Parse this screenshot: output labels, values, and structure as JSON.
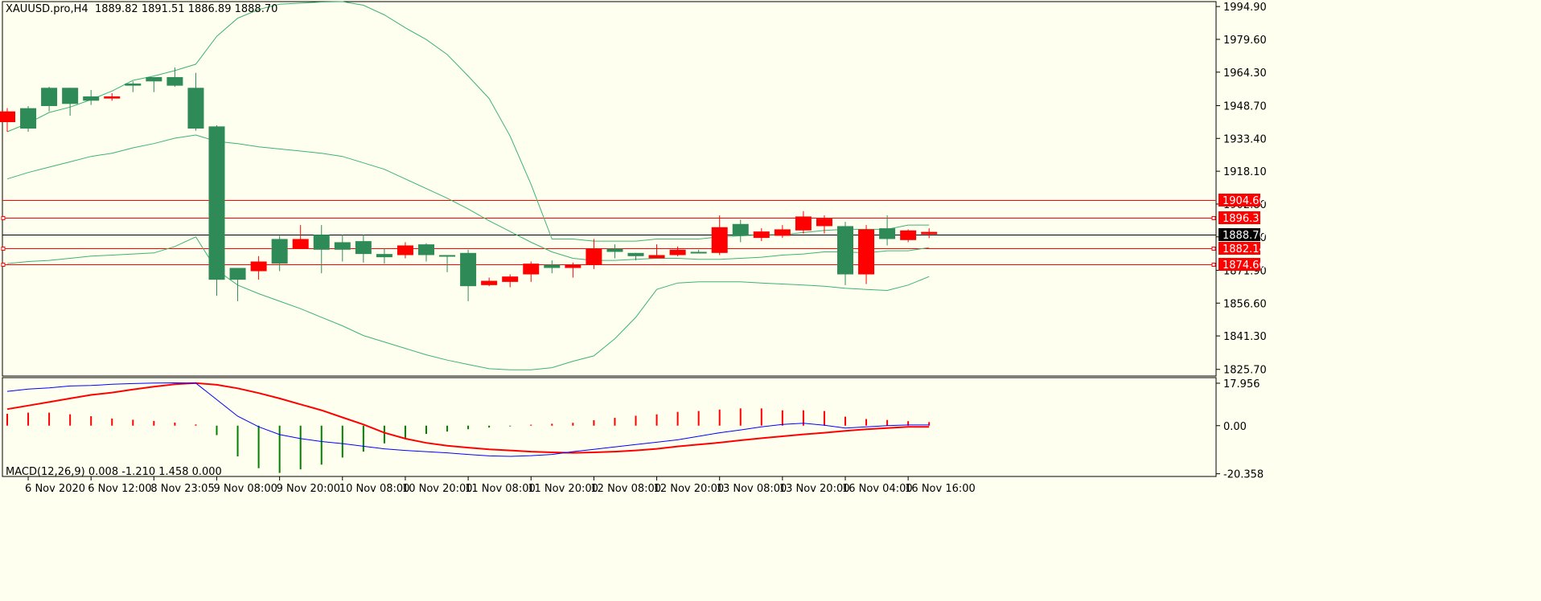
{
  "header": {
    "symbol_timeframe": "XAUUSD.pro,H4",
    "ohlc": "1889.82 1891.51 1886.89 1888.70"
  },
  "macd_header": {
    "label": "MACD(12,26,9)",
    "values": "0.008 -1.210 1.458 0.000"
  },
  "price_axis": {
    "ticks": [
      "1994.90",
      "1979.60",
      "1964.30",
      "1948.70",
      "1933.40",
      "1918.10",
      "1902.80",
      "1887.50",
      "1871.90",
      "1856.60",
      "1841.30",
      "1825.70"
    ],
    "tick_values": [
      1994.9,
      1979.6,
      1964.3,
      1948.7,
      1933.4,
      1918.1,
      1902.8,
      1887.5,
      1871.9,
      1856.6,
      1841.3,
      1825.7
    ],
    "range": [
      1822.6,
      1997.2
    ]
  },
  "macd_axis": {
    "ticks": [
      "17.956",
      "0.00",
      "-20.358"
    ],
    "tick_values": [
      17.956,
      0,
      -20.358
    ]
  },
  "time_axis": {
    "labels": [
      "6 Nov 2020",
      "6 Nov 12:00",
      "8 Nov 23:05",
      "9 Nov 08:00",
      "9 Nov 20:00",
      "10 Nov 08:00",
      "10 Nov 20:00",
      "11 Nov 08:00",
      "11 Nov 20:00",
      "12 Nov 08:00",
      "12 Nov 20:00",
      "13 Nov 08:00",
      "13 Nov 20:00",
      "16 Nov 04:00",
      "16 Nov 16:00"
    ],
    "label_bar_index": [
      1,
      4,
      7,
      10,
      13,
      16,
      19,
      22,
      25,
      28,
      31,
      34,
      37,
      40,
      43
    ]
  },
  "levels": [
    {
      "label": "1904.60",
      "value": 1904.6,
      "color": "#ff0000"
    },
    {
      "label": "1896.31",
      "value": 1896.31,
      "color": "#ff0000"
    },
    {
      "label": "1888.70",
      "value": 1888.7,
      "color": "#000000"
    },
    {
      "label": "1882.14",
      "value": 1882.14,
      "color": "#ff0000"
    },
    {
      "label": "1874.66",
      "value": 1874.66,
      "color": "#ff0000"
    }
  ],
  "colors": {
    "background": "#fffff0",
    "bull": "#2e8b57",
    "bear": "#ff0000",
    "bands": "#3cb371",
    "macd_line": "#0000ff",
    "signal_line": "#ff0000",
    "hist_pos": "#ff0000",
    "hist_neg": "#008000"
  },
  "chart_data": {
    "type": "candlestick",
    "symbol": "XAUUSD.pro",
    "timeframe": "H4",
    "ylim": [
      1822.6,
      1997.2
    ],
    "candles": [
      {
        "o": 1946.0,
        "h": 1947.5,
        "l": 1936.5,
        "c": 1941.0
      },
      {
        "o": 1938.0,
        "h": 1948.5,
        "l": 1936.5,
        "c": 1947.5
      },
      {
        "o": 1948.5,
        "h": 1957.5,
        "l": 1946.0,
        "c": 1957.0
      },
      {
        "o": 1949.5,
        "h": 1957.0,
        "l": 1944.0,
        "c": 1957.0
      },
      {
        "o": 1951.0,
        "h": 1956.0,
        "l": 1949.0,
        "c": 1953.0
      },
      {
        "o": 1953.0,
        "h": 1954.5,
        "l": 1951.0,
        "c": 1952.0
      },
      {
        "o": 1958.0,
        "h": 1960.0,
        "l": 1955.0,
        "c": 1959.0
      },
      {
        "o": 1960.0,
        "h": 1961.0,
        "l": 1955.0,
        "c": 1962.0
      },
      {
        "o": 1958.0,
        "h": 1966.5,
        "l": 1957.5,
        "c": 1962.0
      },
      {
        "o": 1938.0,
        "h": 1964.0,
        "l": 1937.0,
        "c": 1957.0
      },
      {
        "o": 1867.5,
        "h": 1939.5,
        "l": 1860.0,
        "c": 1939.0
      },
      {
        "o": 1867.5,
        "h": 1873.0,
        "l": 1857.5,
        "c": 1873.0
      },
      {
        "o": 1876.0,
        "h": 1878.5,
        "l": 1867.5,
        "c": 1871.5
      },
      {
        "o": 1875.0,
        "h": 1888.0,
        "l": 1871.5,
        "c": 1886.5
      },
      {
        "o": 1886.5,
        "h": 1893.0,
        "l": 1882.0,
        "c": 1882.0
      },
      {
        "o": 1881.5,
        "h": 1893.0,
        "l": 1870.5,
        "c": 1888.5
      },
      {
        "o": 1881.5,
        "h": 1888.5,
        "l": 1876.0,
        "c": 1885.0
      },
      {
        "o": 1879.5,
        "h": 1888.5,
        "l": 1875.5,
        "c": 1885.5
      },
      {
        "o": 1878.0,
        "h": 1882.0,
        "l": 1875.0,
        "c": 1879.5
      },
      {
        "o": 1883.5,
        "h": 1885.0,
        "l": 1877.5,
        "c": 1879.0
      },
      {
        "o": 1879.0,
        "h": 1884.5,
        "l": 1876.0,
        "c": 1884.0
      },
      {
        "o": 1878.5,
        "h": 1879.0,
        "l": 1871.0,
        "c": 1879.0
      },
      {
        "o": 1864.5,
        "h": 1881.5,
        "l": 1857.5,
        "c": 1880.0
      },
      {
        "o": 1867.0,
        "h": 1868.5,
        "l": 1864.5,
        "c": 1865.0
      },
      {
        "o": 1869.0,
        "h": 1870.0,
        "l": 1864.0,
        "c": 1866.5
      },
      {
        "o": 1875.0,
        "h": 1876.0,
        "l": 1866.5,
        "c": 1870.0
      },
      {
        "o": 1873.0,
        "h": 1876.5,
        "l": 1870.5,
        "c": 1874.5
      },
      {
        "o": 1874.5,
        "h": 1875.5,
        "l": 1868.5,
        "c": 1873.0
      },
      {
        "o": 1882.0,
        "h": 1886.5,
        "l": 1872.5,
        "c": 1874.5
      },
      {
        "o": 1880.5,
        "h": 1884.0,
        "l": 1877.5,
        "c": 1882.0
      },
      {
        "o": 1878.5,
        "h": 1880.0,
        "l": 1876.5,
        "c": 1880.0
      },
      {
        "o": 1879.0,
        "h": 1884.0,
        "l": 1877.5,
        "c": 1877.5
      },
      {
        "o": 1881.5,
        "h": 1883.0,
        "l": 1878.5,
        "c": 1879.0
      },
      {
        "o": 1880.0,
        "h": 1881.5,
        "l": 1880.0,
        "c": 1880.5
      },
      {
        "o": 1892.0,
        "h": 1897.5,
        "l": 1879.0,
        "c": 1880.0
      },
      {
        "o": 1888.0,
        "h": 1895.5,
        "l": 1885.0,
        "c": 1893.5
      },
      {
        "o": 1890.0,
        "h": 1891.5,
        "l": 1885.5,
        "c": 1887.0
      },
      {
        "o": 1891.0,
        "h": 1893.0,
        "l": 1887.0,
        "c": 1888.0
      },
      {
        "o": 1897.0,
        "h": 1899.5,
        "l": 1889.0,
        "c": 1890.5
      },
      {
        "o": 1896.0,
        "h": 1897.5,
        "l": 1889.0,
        "c": 1892.5
      },
      {
        "o": 1870.0,
        "h": 1894.5,
        "l": 1865.0,
        "c": 1892.5
      },
      {
        "o": 1891.0,
        "h": 1893.0,
        "l": 1865.5,
        "c": 1870.0
      },
      {
        "o": 1886.5,
        "h": 1897.5,
        "l": 1883.5,
        "c": 1891.5
      },
      {
        "o": 1890.5,
        "h": 1891.0,
        "l": 1885.0,
        "c": 1886.0
      },
      {
        "o": 1889.8,
        "h": 1891.5,
        "l": 1886.9,
        "c": 1888.7
      }
    ],
    "bollinger": {
      "upper": [
        1936.5,
        1940.5,
        1945.5,
        1948.0,
        1951.5,
        1955.5,
        1960.5,
        1962.5,
        1965.0,
        1968.0,
        1981.0,
        1989.5,
        1993.5,
        1996.0,
        1996.5,
        1997.0,
        1997.2,
        1995.5,
        1991.0,
        1985.0,
        1979.5,
        1972.5,
        1962.5,
        1952.0,
        1934.5,
        1912.0,
        1886.5,
        1886.5,
        1885.5,
        1885.5,
        1885.5,
        1886.5,
        1886.5,
        1886.5,
        1887.5,
        1888.0,
        1888.5,
        1888.5,
        1889.5,
        1890.5,
        1891.0,
        1891.0,
        1891.0,
        1893.0,
        1893.0
      ],
      "middle": [
        1914.5,
        1917.5,
        1920.0,
        1922.5,
        1925.0,
        1926.5,
        1929.0,
        1931.0,
        1933.5,
        1935.0,
        1932.0,
        1931.0,
        1929.5,
        1928.5,
        1927.5,
        1926.5,
        1925.0,
        1922.0,
        1919.0,
        1914.5,
        1910.0,
        1905.5,
        1900.5,
        1895.0,
        1890.0,
        1885.0,
        1880.5,
        1877.5,
        1876.5,
        1876.5,
        1877.0,
        1877.5,
        1877.5,
        1877.0,
        1877.0,
        1877.5,
        1878.0,
        1879.0,
        1879.5,
        1880.5,
        1880.5,
        1880.0,
        1881.0,
        1881.0,
        1882.5
      ],
      "lower": [
        1875.0,
        1876.0,
        1876.5,
        1877.5,
        1878.5,
        1879.0,
        1879.5,
        1880.0,
        1883.0,
        1887.5,
        1872.0,
        1865.0,
        1861.0,
        1857.5,
        1854.0,
        1850.0,
        1846.0,
        1841.5,
        1838.5,
        1835.5,
        1832.5,
        1830.0,
        1828.0,
        1826.0,
        1825.5,
        1825.5,
        1826.5,
        1829.5,
        1832.0,
        1840.0,
        1850.0,
        1863.0,
        1866.0,
        1866.5,
        1866.5,
        1866.5,
        1866.0,
        1865.5,
        1865.0,
        1864.5,
        1863.5,
        1863.0,
        1862.5,
        1865.0,
        1869.0
      ]
    },
    "macd": {
      "histogram": [
        5.0,
        5.5,
        5.5,
        4.8,
        4.0,
        3.0,
        2.5,
        2.0,
        1.3,
        0.5,
        -4.0,
        -13.0,
        -18.0,
        -20.0,
        -18.5,
        -16.5,
        -13.5,
        -11.0,
        -7.5,
        -5.5,
        -3.5,
        -2.5,
        -1.5,
        -0.8,
        -0.3,
        0.4,
        0.8,
        1.2,
        2.3,
        3.3,
        4.2,
        4.8,
        5.8,
        6.2,
        6.8,
        7.3,
        7.3,
        6.5,
        6.5,
        6.2,
        3.8,
        2.8,
        2.4,
        1.9,
        1.5
      ],
      "main": [
        14.5,
        15.5,
        16.0,
        16.8,
        17.0,
        17.5,
        17.8,
        18.0,
        18.1,
        18.0,
        11.0,
        4.0,
        -0.5,
        -3.8,
        -5.5,
        -6.7,
        -7.6,
        -8.7,
        -9.8,
        -10.5,
        -11.0,
        -11.5,
        -12.2,
        -12.8,
        -13.0,
        -12.7,
        -12.2,
        -11.0,
        -10.0,
        -9.0,
        -8.0,
        -7.0,
        -6.0,
        -4.5,
        -3.0,
        -1.8,
        -0.5,
        0.5,
        1.0,
        0.2,
        -1.0,
        -0.5,
        0.0,
        0.3,
        0.3
      ],
      "signal": [
        7.0,
        8.5,
        10.0,
        11.5,
        13.0,
        14.0,
        15.3,
        16.5,
        17.5,
        18.0,
        17.3,
        15.8,
        13.8,
        11.5,
        9.0,
        6.5,
        3.5,
        0.5,
        -3.0,
        -5.5,
        -7.3,
        -8.5,
        -9.3,
        -10.0,
        -10.5,
        -11.0,
        -11.3,
        -11.5,
        -11.3,
        -11.0,
        -10.5,
        -9.8,
        -8.8,
        -8.0,
        -7.2,
        -6.2,
        -5.3,
        -4.5,
        -3.7,
        -3.0,
        -2.2,
        -1.5,
        -1.0,
        -0.5,
        -0.5
      ]
    }
  }
}
